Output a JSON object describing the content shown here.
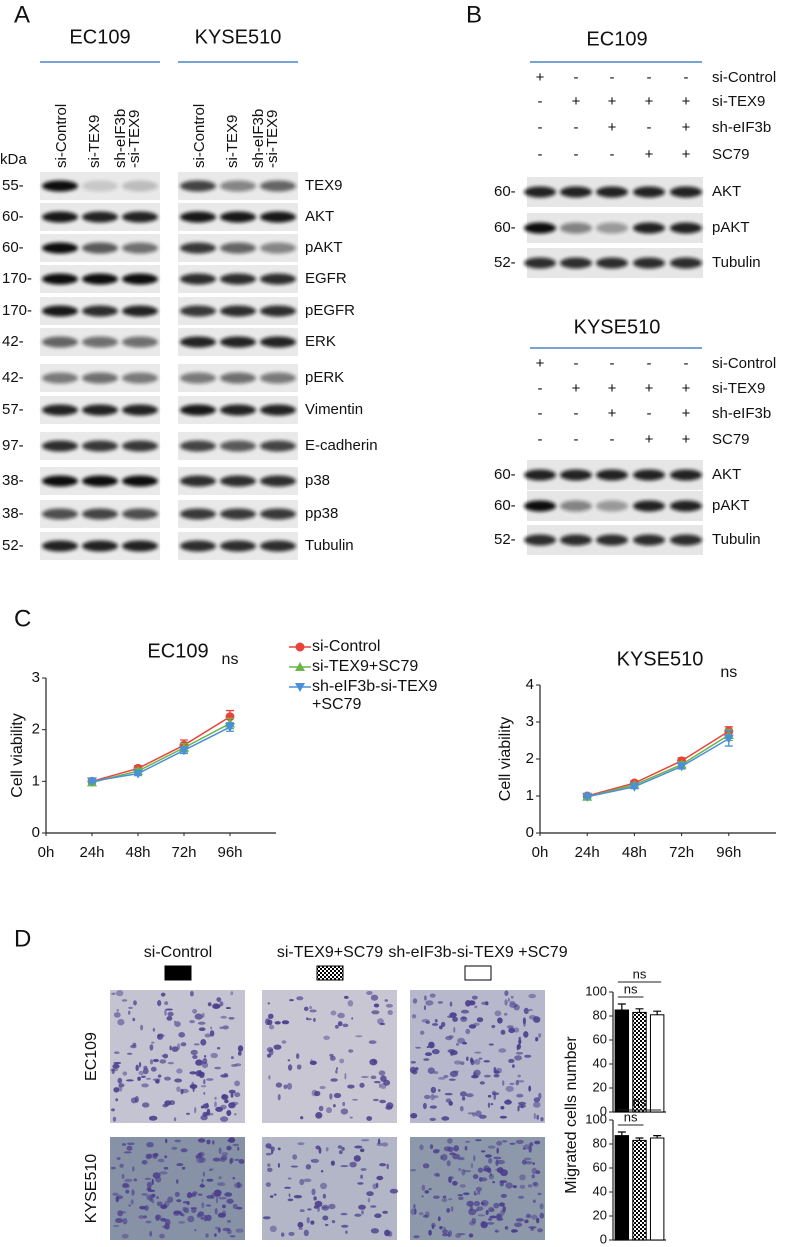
{
  "panel_labels": [
    "A",
    "B",
    "C",
    "D"
  ],
  "panel_a": {
    "groups": [
      "EC109",
      "KYSE510"
    ],
    "lanes": [
      [
        "si-Control"
      ],
      [
        "si-TEX9"
      ],
      [
        "sh-eIF3b",
        "-si-TEX9"
      ]
    ],
    "unit": "kDa",
    "rows": [
      {
        "mw": "55-",
        "protein": "TEX9"
      },
      {
        "mw": "60-",
        "protein": "AKT"
      },
      {
        "mw": "60-",
        "protein": "pAKT"
      },
      {
        "mw": "170-",
        "protein": "EGFR"
      },
      {
        "mw": "170-",
        "protein": "pEGFR"
      },
      {
        "mw": "42-",
        "protein": "ERK"
      },
      {
        "mw": "42-",
        "protein": "pERK"
      },
      {
        "mw": "57-",
        "protein": "Vimentin"
      },
      {
        "mw": "97-",
        "protein": "E-cadherin"
      },
      {
        "mw": "38-",
        "protein": "p38"
      },
      {
        "mw": "38-",
        "protein": "pp38"
      },
      {
        "mw": "52-",
        "protein": "Tubulin"
      }
    ]
  },
  "panel_b": {
    "blocks": [
      {
        "title": "EC109",
        "conditions": [
          {
            "name": "si-Control",
            "signs": [
              "+",
              "-",
              "-",
              "-",
              "-"
            ]
          },
          {
            "name": "si-TEX9",
            "signs": [
              "-",
              "+",
              "+",
              "+",
              "+"
            ]
          },
          {
            "name": "sh-eIF3b",
            "signs": [
              "-",
              "-",
              "+",
              "-",
              "+"
            ]
          },
          {
            "name": "SC79",
            "signs": [
              "-",
              "-",
              "-",
              "+",
              "+"
            ]
          }
        ],
        "rows": [
          {
            "mw": "60-",
            "protein": "AKT"
          },
          {
            "mw": "60-",
            "protein": "pAKT"
          },
          {
            "mw": "52-",
            "protein": "Tubulin"
          }
        ]
      },
      {
        "title": "KYSE510",
        "conditions": [
          {
            "name": "si-Control",
            "signs": [
              "+",
              "-",
              "-",
              "-",
              "-"
            ]
          },
          {
            "name": "si-TEX9",
            "signs": [
              "-",
              "+",
              "+",
              "+",
              "+"
            ]
          },
          {
            "name": "sh-eIF3b",
            "signs": [
              "-",
              "-",
              "+",
              "-",
              "+"
            ]
          },
          {
            "name": "SC79",
            "signs": [
              "-",
              "-",
              "-",
              "+",
              "+"
            ]
          }
        ],
        "rows": [
          {
            "mw": "60-",
            "protein": "AKT"
          },
          {
            "mw": "60-",
            "protein": "pAKT"
          },
          {
            "mw": "52-",
            "protein": "Tubulin"
          }
        ]
      }
    ]
  },
  "chart_data": [
    {
      "type": "line",
      "title": "EC109",
      "ylabel": "Cell viability",
      "x": [
        24,
        48,
        72,
        96
      ],
      "xlim": [
        0,
        120
      ],
      "xticks": [
        {
          "value": 0,
          "label": "0h"
        },
        {
          "value": 24,
          "label": "24h"
        },
        {
          "value": 48,
          "label": "48h"
        },
        {
          "value": 72,
          "label": "72h"
        },
        {
          "value": 96,
          "label": "96h"
        }
      ],
      "ylim": [
        0,
        3
      ],
      "yticks": [
        0,
        1,
        2,
        3
      ],
      "annotations": [
        "ns"
      ],
      "legend": true,
      "series": [
        {
          "name": "si-Control",
          "color": "#e8433a",
          "marker": "circle",
          "values": [
            1,
            1.25,
            1.7,
            2.25
          ],
          "errors": [
            0.03,
            0.05,
            0.1,
            0.12
          ]
        },
        {
          "name": "si-TEX9+SC79",
          "color": "#6ab547",
          "marker": "triangle-up",
          "values": [
            0.98,
            1.2,
            1.65,
            2.12
          ],
          "errors": [
            0.03,
            0.05,
            0.08,
            0.1
          ]
        },
        {
          "name": "sh-eIF3b-si-TEX9 +SC79",
          "color": "#4a90d9",
          "marker": "triangle-down",
          "values": [
            1,
            1.15,
            1.6,
            2.05
          ],
          "errors": [
            0.03,
            0.04,
            0.06,
            0.08
          ]
        }
      ]
    },
    {
      "type": "line",
      "title": "KYSE510",
      "ylabel": "Cell viability",
      "x": [
        24,
        48,
        72,
        96
      ],
      "xlim": [
        0,
        120
      ],
      "xticks": [
        {
          "value": 0,
          "label": "0h"
        },
        {
          "value": 24,
          "label": "24h"
        },
        {
          "value": 48,
          "label": "48h"
        },
        {
          "value": 72,
          "label": "72h"
        },
        {
          "value": 96,
          "label": "96h"
        }
      ],
      "ylim": [
        0,
        4
      ],
      "yticks": [
        0,
        1,
        2,
        3,
        4
      ],
      "annotations": [
        "ns"
      ],
      "legend": false,
      "series": [
        {
          "color": "#e8433a",
          "marker": "circle",
          "values": [
            1,
            1.35,
            1.95,
            2.75
          ],
          "errors": [
            0.04,
            0.06,
            0.08,
            0.12
          ]
        },
        {
          "color": "#6ab547",
          "marker": "triangle-up",
          "values": [
            0.98,
            1.3,
            1.85,
            2.65
          ],
          "errors": [
            0.03,
            0.05,
            0.07,
            0.15
          ]
        },
        {
          "color": "#4a90d9",
          "marker": "triangle-down",
          "values": [
            0.98,
            1.25,
            1.8,
            2.55
          ],
          "errors": [
            0.03,
            0.05,
            0.07,
            0.2
          ]
        }
      ]
    },
    {
      "type": "bar",
      "ylabel": "Migrated cells number",
      "categories": [
        null,
        null,
        null
      ],
      "values": [
        85,
        83,
        81
      ],
      "errors": [
        5,
        3,
        3
      ],
      "color": "#000000",
      "patterns": [
        "solid",
        "checker",
        "open"
      ],
      "ylim": [
        0,
        100
      ],
      "yticks": [
        0,
        20,
        40,
        60,
        80,
        100
      ],
      "annotations": [
        "ns",
        "ns"
      ]
    },
    {
      "type": "bar",
      "categories": [
        null,
        null,
        null
      ],
      "values": [
        87,
        83,
        85
      ],
      "errors": [
        3,
        2,
        2
      ],
      "color": "#000000",
      "patterns": [
        "solid",
        "checker",
        "open"
      ],
      "ylim": [
        0,
        100
      ],
      "yticks": [
        0,
        20,
        40,
        60,
        80,
        100
      ],
      "annotations": [
        "ns",
        "ns"
      ]
    }
  ],
  "panel_d": {
    "columns": [
      "si-Control",
      "si-TEX9+SC79",
      "sh-eIF3b-si-TEX9 +SC79"
    ],
    "rows": [
      "EC109",
      "KYSE510"
    ]
  }
}
